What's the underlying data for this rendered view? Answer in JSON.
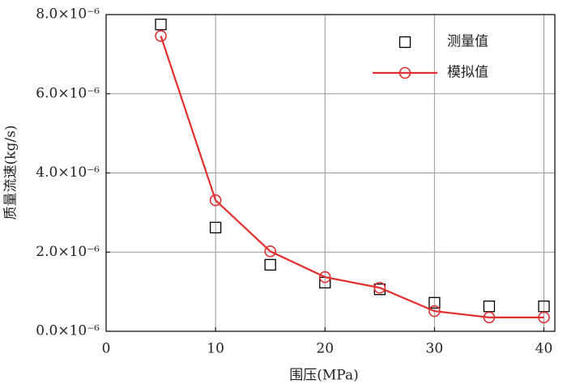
{
  "chart_data": {
    "type": "line",
    "x_label": "围压(MPa)",
    "y_label": "质量流速(kg/s)",
    "x": [
      5,
      10,
      15,
      20,
      25,
      30,
      35,
      40
    ],
    "series": [
      {
        "name": "测量值",
        "color": "#000000",
        "marker": "square",
        "line": false,
        "values": [
          7.75e-06,
          2.62e-06,
          1.68e-06,
          1.23e-06,
          1.06e-06,
          7.2e-07,
          6.3e-07,
          6.3e-07
        ]
      },
      {
        "name": "模拟值",
        "color": "#e03030",
        "marker": "circle",
        "line": true,
        "values": [
          7.46e-06,
          3.31e-06,
          2.02e-06,
          1.37e-06,
          1.1e-06,
          5.1e-07,
          3.5e-07,
          3.5e-07
        ]
      }
    ],
    "xlim": [
      0,
      41
    ],
    "ylim": [
      0,
      8e-06
    ],
    "xticks": [
      0,
      10,
      20,
      30,
      40
    ],
    "yticks": [
      {
        "value": 0,
        "label": "0.0×10⁻⁶"
      },
      {
        "value": 2e-06,
        "label": "2.0×10⁻⁶"
      },
      {
        "value": 4e-06,
        "label": "4.0×10⁻⁶"
      },
      {
        "value": 6e-06,
        "label": "6.0×10⁻⁶"
      },
      {
        "value": 8e-06,
        "label": "8.0×10⁻⁶"
      }
    ],
    "grid": true,
    "legend": "upper right"
  }
}
